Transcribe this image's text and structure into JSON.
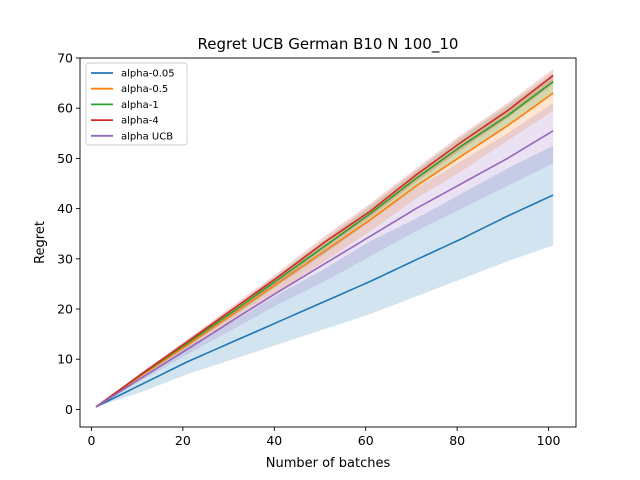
{
  "chart_data": {
    "type": "line",
    "title": "Regret UCB German B10 N 100_10",
    "xlabel": "Number of batches",
    "ylabel": "Regret",
    "xlim": [
      -2.5,
      106
    ],
    "ylim": [
      -3.5,
      70
    ],
    "xticks": [
      0,
      20,
      40,
      60,
      80,
      100
    ],
    "yticks": [
      0,
      10,
      20,
      30,
      40,
      50,
      60,
      70
    ],
    "grid": false,
    "legend_position": "top-left",
    "x": [
      1,
      11,
      21,
      31,
      41,
      51,
      61,
      71,
      81,
      91,
      101
    ],
    "series": [
      {
        "name": "alpha-0.05",
        "color": "#1f77b4",
        "values": [
          0.5,
          5.0,
          9.5,
          13.5,
          17.5,
          21.5,
          25.5,
          29.8,
          34.0,
          38.5,
          42.7
        ],
        "lower": [
          0.5,
          3.5,
          7.0,
          10.0,
          13.0,
          16.0,
          19.0,
          22.5,
          26.0,
          29.5,
          32.7
        ],
        "upper": [
          0.5,
          6.5,
          12.5,
          17.5,
          23.0,
          28.0,
          33.5,
          38.0,
          43.0,
          48.0,
          52.5
        ]
      },
      {
        "name": "alpha-0.5",
        "color": "#ff7f0e",
        "values": [
          0.5,
          6.8,
          12.8,
          19.0,
          25.3,
          31.5,
          37.8,
          44.5,
          50.5,
          56.5,
          63.0
        ],
        "lower": [
          0.5,
          6.2,
          11.8,
          17.5,
          23.5,
          29.5,
          35.5,
          42.0,
          47.5,
          53.5,
          59.5
        ],
        "upper": [
          0.5,
          7.2,
          13.5,
          20.0,
          26.5,
          33.0,
          39.5,
          46.5,
          53.0,
          59.5,
          66.0
        ]
      },
      {
        "name": "alpha-1",
        "color": "#2ca02c",
        "values": [
          0.5,
          7.0,
          13.2,
          19.5,
          26.0,
          32.5,
          39.0,
          46.0,
          52.5,
          58.5,
          65.3
        ],
        "lower": [
          0.5,
          6.6,
          12.5,
          18.5,
          24.8,
          31.0,
          37.5,
          44.0,
          50.5,
          56.5,
          63.0
        ],
        "upper": [
          0.5,
          7.3,
          13.8,
          20.3,
          27.0,
          33.8,
          40.5,
          47.5,
          54.3,
          60.5,
          67.0
        ]
      },
      {
        "name": "alpha-4",
        "color": "#d62728",
        "values": [
          0.5,
          7.1,
          13.5,
          20.0,
          26.5,
          33.3,
          39.5,
          46.7,
          53.3,
          59.5,
          66.5
        ],
        "lower": [
          0.5,
          6.8,
          12.9,
          19.2,
          25.5,
          32.0,
          38.3,
          45.3,
          51.8,
          58.0,
          64.8
        ],
        "upper": [
          0.5,
          7.4,
          14.0,
          20.7,
          27.4,
          34.5,
          41.0,
          48.0,
          54.8,
          61.0,
          67.8
        ]
      },
      {
        "name": "alpha UCB",
        "color": "#9467bd",
        "values": [
          0.5,
          6.3,
          12.0,
          17.8,
          23.5,
          29.0,
          34.5,
          40.0,
          45.0,
          50.0,
          55.5
        ],
        "lower": [
          0.5,
          5.8,
          11.0,
          16.0,
          21.0,
          25.5,
          30.5,
          35.5,
          40.0,
          44.5,
          49.0
        ],
        "upper": [
          0.5,
          6.8,
          13.0,
          19.5,
          25.8,
          32.0,
          38.0,
          44.0,
          49.5,
          55.0,
          61.0
        ]
      }
    ]
  }
}
